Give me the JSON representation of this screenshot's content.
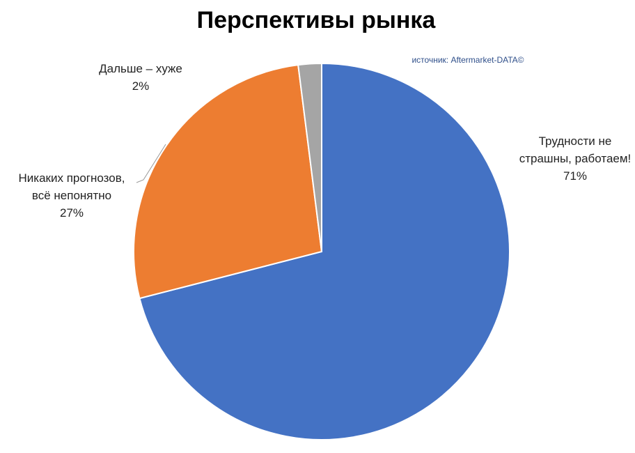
{
  "title": "Перспективы рынка",
  "source": "источник: Aftermarket-DATA©",
  "chart_data": {
    "type": "pie",
    "title": "Перспективы рынка",
    "start_angle_deg": 0,
    "direction": "clockwise",
    "slices": [
      {
        "label_lines": [
          "Трудности не",
          "страшны, работаем!"
        ],
        "label": "Трудности не страшны, работаем!",
        "value": 71,
        "percent_label": "71%",
        "color": "#4472C4"
      },
      {
        "label_lines": [
          "Никаких прогнозов,",
          "всё непонятно"
        ],
        "label": "Никаких прогнозов, всё непонятно",
        "value": 27,
        "percent_label": "27%",
        "color": "#ED7D31"
      },
      {
        "label_lines": [
          "Дальше – хуже"
        ],
        "label": "Дальше – хуже",
        "value": 2,
        "percent_label": "2%",
        "color": "#A5A5A5"
      }
    ],
    "legend": "none",
    "data_labels": "outside"
  }
}
